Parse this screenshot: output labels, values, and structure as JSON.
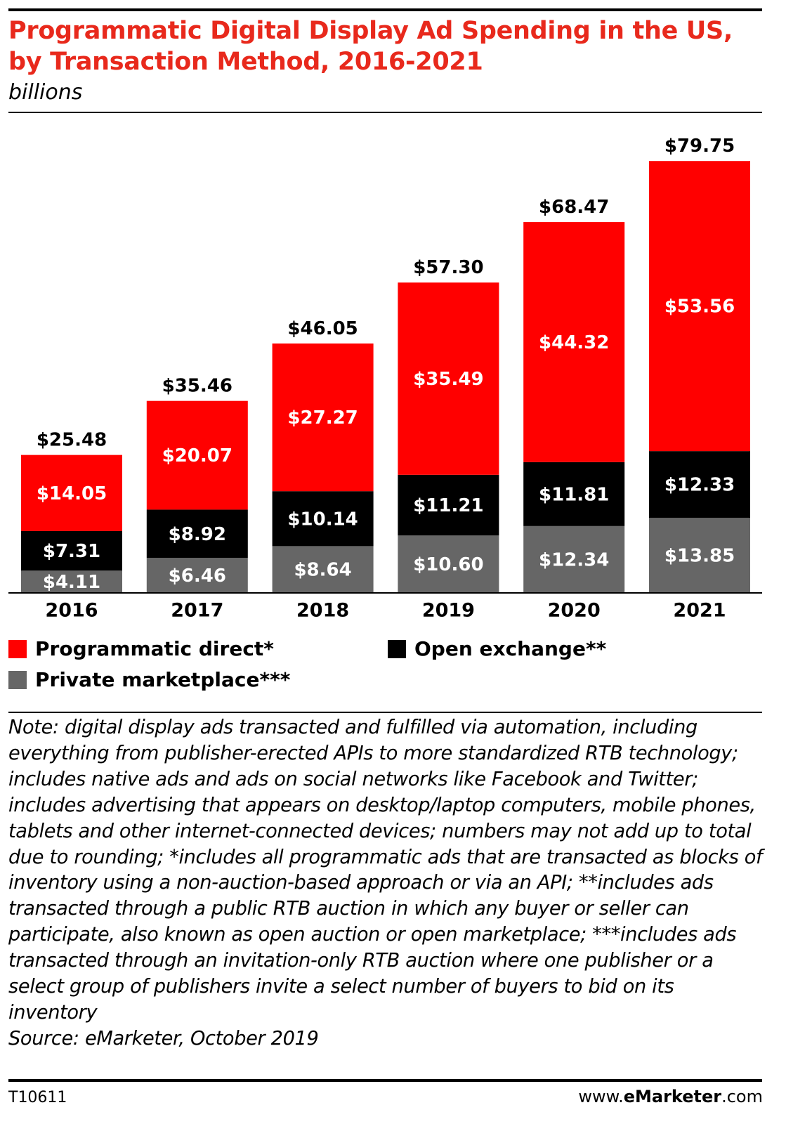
{
  "title": "Programmatic Digital Display Ad Spending in the US, by Transaction Method, 2016-2021",
  "subtitle": "billions",
  "colors": {
    "programmatic_direct": "#ff0000",
    "open_exchange": "#000000",
    "private_marketplace": "#666666",
    "title": "#e8291c"
  },
  "chart_data": {
    "type": "bar",
    "stacked": true,
    "title": "Programmatic Digital Display Ad Spending in the US, by Transaction Method, 2016-2021",
    "ylabel": "billions",
    "xlabel": "",
    "categories": [
      "2016",
      "2017",
      "2018",
      "2019",
      "2020",
      "2021"
    ],
    "ylim": [
      0,
      85
    ],
    "series": [
      {
        "name": "Private marketplace***",
        "color": "#666666",
        "values": [
          4.11,
          6.46,
          8.64,
          10.6,
          12.34,
          13.85
        ],
        "labels": [
          "$4.11",
          "$6.46",
          "$8.64",
          "$10.60",
          "$12.34",
          "$13.85"
        ]
      },
      {
        "name": "Open exchange**",
        "color": "#000000",
        "values": [
          7.31,
          8.92,
          10.14,
          11.21,
          11.81,
          12.33
        ],
        "labels": [
          "$7.31",
          "$8.92",
          "$10.14",
          "$11.21",
          "$11.81",
          "$12.33"
        ]
      },
      {
        "name": "Programmatic direct*",
        "color": "#ff0000",
        "values": [
          14.05,
          20.07,
          27.27,
          35.49,
          44.32,
          53.56
        ],
        "labels": [
          "$14.05",
          "$20.07",
          "$27.27",
          "$35.49",
          "$44.32",
          "$53.56"
        ]
      }
    ],
    "totals": [
      25.48,
      35.46,
      46.05,
      57.3,
      68.47,
      79.75
    ],
    "total_labels": [
      "$25.48",
      "$35.46",
      "$46.05",
      "$57.30",
      "$68.47",
      "$79.75"
    ],
    "legend": "bottom"
  },
  "legend": {
    "programmatic_direct": "Programmatic direct*",
    "open_exchange": "Open exchange**",
    "private_marketplace": "Private marketplace***"
  },
  "note": "Note: digital display ads transacted and fulfilled via automation, including everything from publisher-erected APIs to more standardized RTB technology; includes native ads and ads on social networks like Facebook and Twitter; includes advertising that appears on desktop/laptop computers, mobile phones, tablets and other internet-connected devices; numbers may not add up to total due to rounding; *includes all programmatic ads that are transacted as blocks of inventory using a non-auction-based approach or via an API; **includes ads transacted through a public RTB auction in which any buyer or seller can participate, also known as open auction or open marketplace; ***includes ads transacted through an invitation-only RTB auction where one publisher or a select group of publishers invite a select number of buyers to bid on its inventory",
  "source": "Source: eMarketer, October 2019",
  "footer": {
    "chart_id": "T10611",
    "site_prefix": "www.",
    "site_brand": "eMarketer",
    "site_suffix": ".com"
  }
}
